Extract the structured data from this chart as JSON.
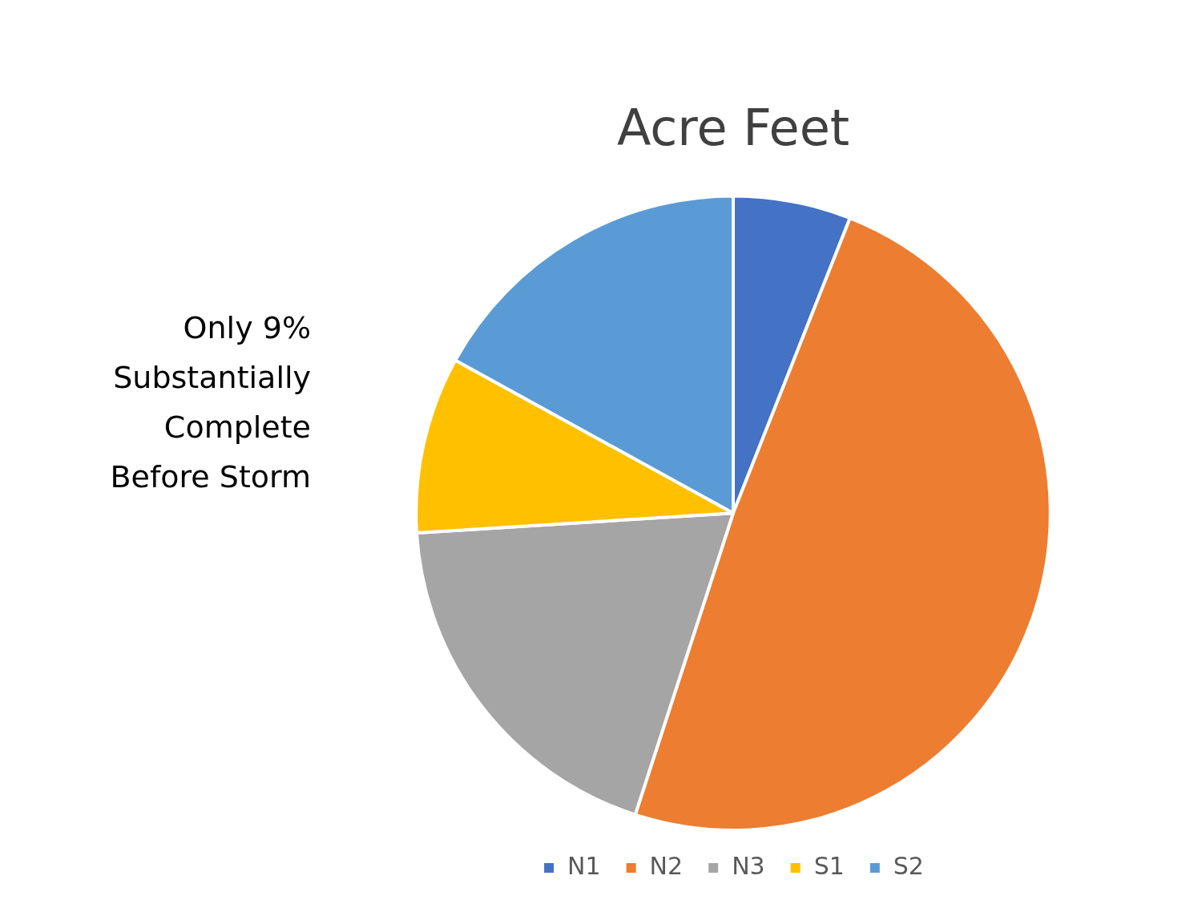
{
  "chart_data": {
    "type": "pie",
    "title": "Acre Feet",
    "categories": [
      "N1",
      "N2",
      "N3",
      "S1",
      "S2"
    ],
    "values": [
      6,
      49,
      19,
      9,
      17
    ],
    "colors": [
      "#4472c4",
      "#ed7d31",
      "#a5a5a5",
      "#ffc000",
      "#5b9bd5"
    ],
    "legend": "bottom",
    "annotations": [
      "Only 9% Substantially Complete Before Storm"
    ]
  }
}
